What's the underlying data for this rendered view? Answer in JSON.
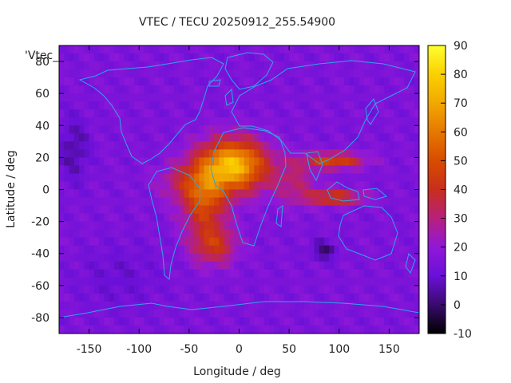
{
  "chart_data": {
    "type": "heatmap",
    "title": "VTEC / TECU 20250912_255.54900",
    "xlabel": "Longitude / deg",
    "ylabel": "Latitude / deg",
    "key_label": "'Vtec_",
    "x_range": [
      -180,
      180
    ],
    "y_range": [
      -90,
      90
    ],
    "x_ticks": [
      -150,
      -100,
      -50,
      0,
      50,
      100,
      150
    ],
    "y_ticks": [
      -80,
      -60,
      -40,
      -20,
      0,
      20,
      40,
      60,
      80
    ],
    "colorbar": {
      "range": [
        -10,
        90
      ],
      "ticks": [
        -10,
        0,
        10,
        20,
        30,
        40,
        50,
        60,
        70,
        80,
        90
      ],
      "palette": [
        "#000000",
        "#3a0a6e",
        "#6a10d8",
        "#9018d8",
        "#b8207c",
        "#c82e1c",
        "#d84c00",
        "#e67800",
        "#f2a800",
        "#fad000",
        "#ffff30"
      ]
    },
    "background_tecu": 15,
    "blobs": [
      {
        "lon": -5,
        "lat": 15,
        "slon": 32,
        "slat": 16,
        "amp": 60
      },
      {
        "lon": -35,
        "lat": -5,
        "slon": 22,
        "slat": 22,
        "amp": 35
      },
      {
        "lon": -25,
        "lat": -35,
        "slon": 22,
        "slat": 12,
        "amp": 25
      },
      {
        "lon": 95,
        "lat": 18,
        "slon": 30,
        "slat": 5,
        "amp": 32
      },
      {
        "lon": 95,
        "lat": -5,
        "slon": 28,
        "slat": 5,
        "amp": 30
      },
      {
        "lon": 55,
        "lat": 5,
        "slon": 22,
        "slat": 14,
        "amp": 15
      },
      {
        "lon": -60,
        "lat": 5,
        "slon": 25,
        "slat": 12,
        "amp": 12
      },
      {
        "lon": 85,
        "lat": -38,
        "slon": 12,
        "slat": 6,
        "amp": -14
      },
      {
        "lon": -165,
        "lat": 25,
        "slon": 15,
        "slat": 20,
        "amp": -10
      },
      {
        "lon": -120,
        "lat": -55,
        "slon": 40,
        "slat": 20,
        "amp": -5
      }
    ]
  }
}
